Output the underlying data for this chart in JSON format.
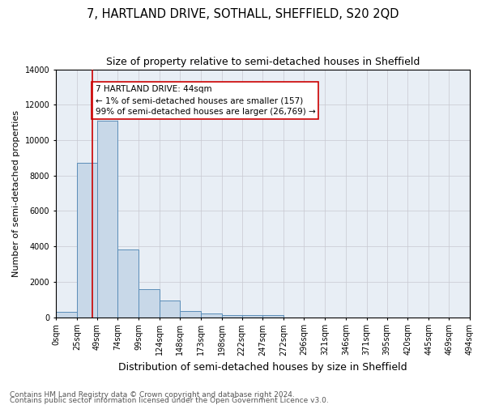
{
  "title": "7, HARTLAND DRIVE, SOTHALL, SHEFFIELD, S20 2QD",
  "subtitle": "Size of property relative to semi-detached houses in Sheffield",
  "xlabel": "Distribution of semi-detached houses by size in Sheffield",
  "ylabel": "Number of semi-detached properties",
  "footer_line1": "Contains HM Land Registry data © Crown copyright and database right 2024.",
  "footer_line2": "Contains public sector information licensed under the Open Government Licence v3.0.",
  "bin_edges": [
    0,
    25,
    49,
    74,
    99,
    124,
    148,
    173,
    198,
    222,
    247,
    272,
    296,
    321,
    346,
    371,
    395,
    420,
    445,
    469,
    494
  ],
  "bar_heights": [
    300,
    8700,
    11100,
    3800,
    1600,
    950,
    350,
    200,
    130,
    100,
    100,
    0,
    0,
    0,
    0,
    0,
    0,
    0,
    0,
    0
  ],
  "bar_color": "#c8d8e8",
  "bar_edge_color": "#5b8db8",
  "property_size": 44,
  "vline_color": "#cc0000",
  "annotation_text": "7 HARTLAND DRIVE: 44sqm\n← 1% of semi-detached houses are smaller (157)\n99% of semi-detached houses are larger (26,769) →",
  "annotation_box_color": "#ffffff",
  "annotation_box_edge_color": "#cc0000",
  "ylim": [
    0,
    14000
  ],
  "background_color": "#e8eef5",
  "tick_labels": [
    "0sqm",
    "25sqm",
    "49sqm",
    "74sqm",
    "99sqm",
    "124sqm",
    "148sqm",
    "173sqm",
    "198sqm",
    "222sqm",
    "247sqm",
    "272sqm",
    "296sqm",
    "321sqm",
    "346sqm",
    "371sqm",
    "395sqm",
    "420sqm",
    "445sqm",
    "469sqm",
    "494sqm"
  ],
  "title_fontsize": 10.5,
  "subtitle_fontsize": 9,
  "xlabel_fontsize": 9,
  "ylabel_fontsize": 8,
  "tick_fontsize": 7,
  "annotation_fontsize": 7.5,
  "footer_fontsize": 6.5
}
